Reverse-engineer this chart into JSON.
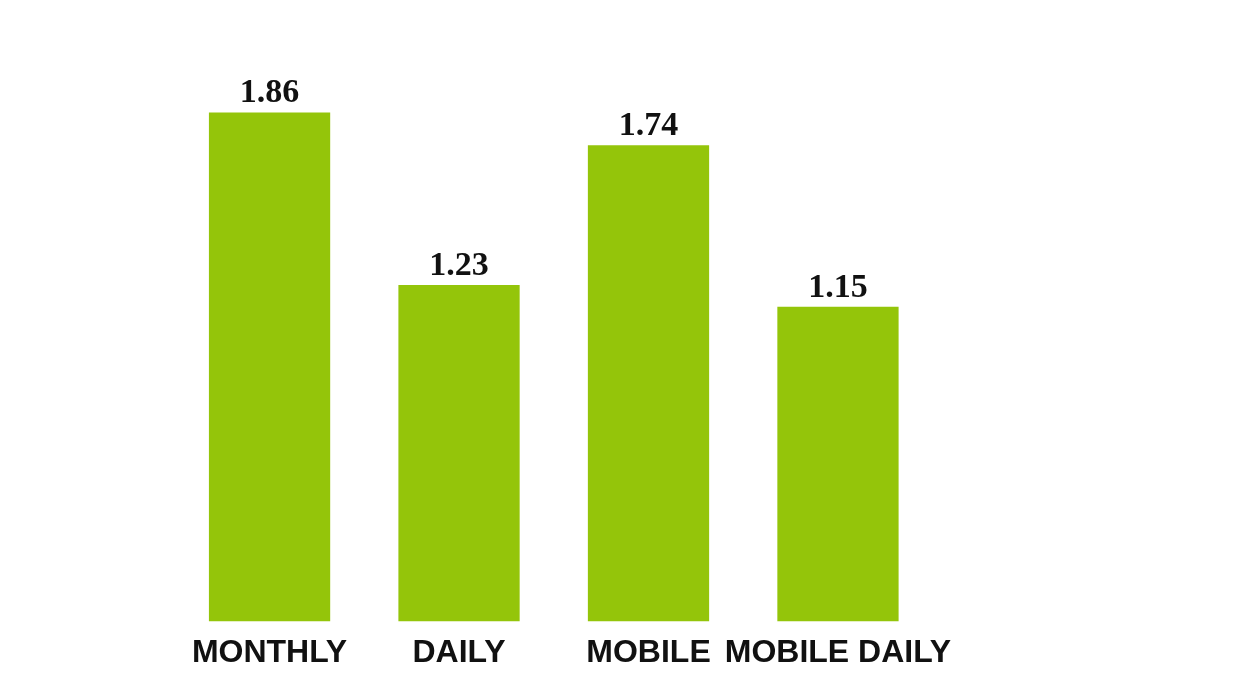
{
  "chart_data": {
    "type": "bar",
    "categories": [
      "MONTHLY",
      "DAILY",
      "MOBILE",
      "MOBILE DAILY"
    ],
    "values": [
      1.86,
      1.23,
      1.74,
      1.15
    ],
    "color": "#94c50a",
    "data_labels": true,
    "tick_labels": "x"
  }
}
